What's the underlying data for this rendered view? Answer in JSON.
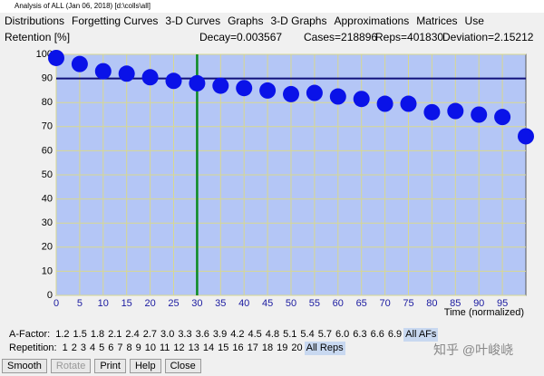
{
  "window_title": "Analysis of ALL (Jan 06, 2018) [d:\\colls\\all]",
  "menu": [
    "Distributions",
    "Forgetting Curves",
    "3-D Curves",
    "Graphs",
    "3-D Graphs",
    "Approximations",
    "Matrices",
    "Use"
  ],
  "header": {
    "y_label": "Retention [%]",
    "decay": "Decay=0.003567",
    "cases": "Cases=218896",
    "reps": "Reps=401830",
    "deviation": "Deviation=2.15212"
  },
  "chart_data": {
    "type": "scatter",
    "x_label": "Time (normalized)",
    "xlim": [
      0,
      100
    ],
    "xticks": [
      0,
      5,
      10,
      15,
      20,
      25,
      30,
      35,
      40,
      45,
      50,
      55,
      60,
      65,
      70,
      75,
      80,
      85,
      90,
      95
    ],
    "ylim": [
      0,
      100
    ],
    "yticks": [
      0,
      10,
      20,
      30,
      40,
      50,
      60,
      70,
      80,
      90,
      100
    ],
    "grid": true,
    "hline": 90,
    "vline": 30,
    "background": "#b4c6f6",
    "series": [
      {
        "color": "#0a12e8",
        "x": [
          0,
          5,
          10,
          15,
          20,
          25,
          30,
          35,
          40,
          45,
          50,
          55,
          60,
          65,
          70,
          75,
          80,
          85,
          90,
          95,
          100
        ],
        "values": [
          98.5,
          96,
          93,
          92,
          90.5,
          89,
          88,
          87,
          86,
          85,
          83.5,
          84,
          82.5,
          81.5,
          79.5,
          79.5,
          76,
          76.5,
          75,
          74,
          66
        ]
      }
    ]
  },
  "afactor": {
    "label": "A-Factor:",
    "items": [
      "1.2",
      "1.5",
      "1.8",
      "2.1",
      "2.4",
      "2.7",
      "3.0",
      "3.3",
      "3.6",
      "3.9",
      "4.2",
      "4.5",
      "4.8",
      "5.1",
      "5.4",
      "5.7",
      "6.0",
      "6.3",
      "6.6",
      "6.9",
      "All AFs"
    ]
  },
  "repetition": {
    "label": "Repetition:",
    "items": [
      "1",
      "2",
      "3",
      "4",
      "5",
      "6",
      "7",
      "8",
      "9",
      "10",
      "11",
      "12",
      "13",
      "14",
      "15",
      "16",
      "17",
      "18",
      "19",
      "20",
      "All Reps"
    ]
  },
  "buttons": [
    "Smooth",
    "Rotate",
    "Print",
    "Help",
    "Close"
  ],
  "watermark": "知乎 @叶峻峣"
}
